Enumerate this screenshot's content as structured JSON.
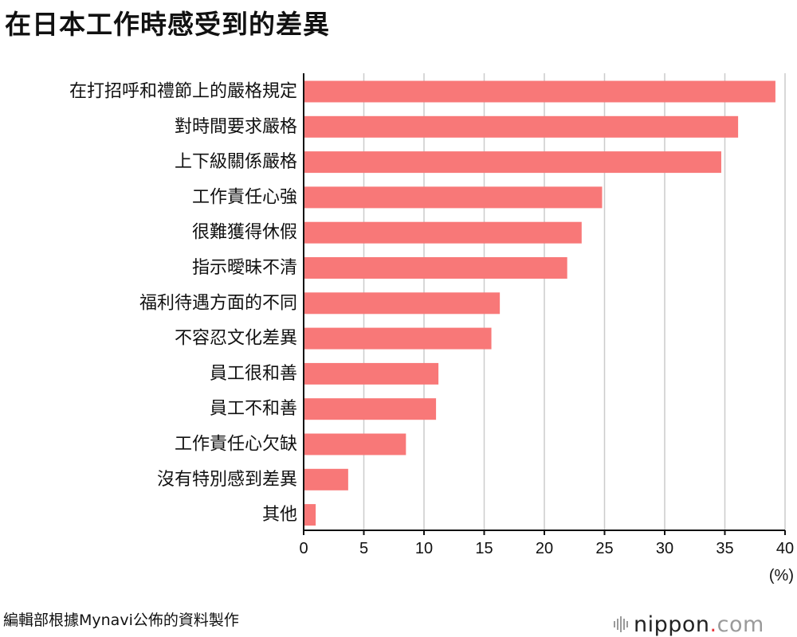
{
  "title": "在日本工作時感受到的差異",
  "unit": "(%)",
  "source": "編輯部根據Mynavi公佈的資料製作",
  "logo": {
    "name": "nippon",
    "dot": ".",
    "tld": "com"
  },
  "colors": {
    "bar": "#f87878",
    "grid": "#cccccc",
    "axis": "#111111"
  },
  "chart_data": {
    "type": "bar",
    "orientation": "horizontal",
    "title": "在日本工作時感受到的差異",
    "xlabel": "(%)",
    "ylabel": "",
    "xlim": [
      0,
      40
    ],
    "xticks": [
      0,
      5,
      10,
      15,
      20,
      25,
      30,
      35,
      40
    ],
    "grid": "vertical",
    "categories": [
      "在打招呼和禮節上的嚴格規定",
      "對時間要求嚴格",
      "上下級關係嚴格",
      "工作責任心強",
      "很難獲得休假",
      "指示曖昧不清",
      "福利待遇方面的不同",
      "不容忍文化差異",
      "員工很和善",
      "員工不和善",
      "工作責任心欠缺",
      "沒有特別感到差異",
      "其他"
    ],
    "values": [
      39.2,
      36.1,
      34.7,
      24.8,
      23.1,
      21.9,
      16.3,
      15.6,
      11.2,
      11.0,
      8.5,
      3.7,
      1.0
    ]
  }
}
